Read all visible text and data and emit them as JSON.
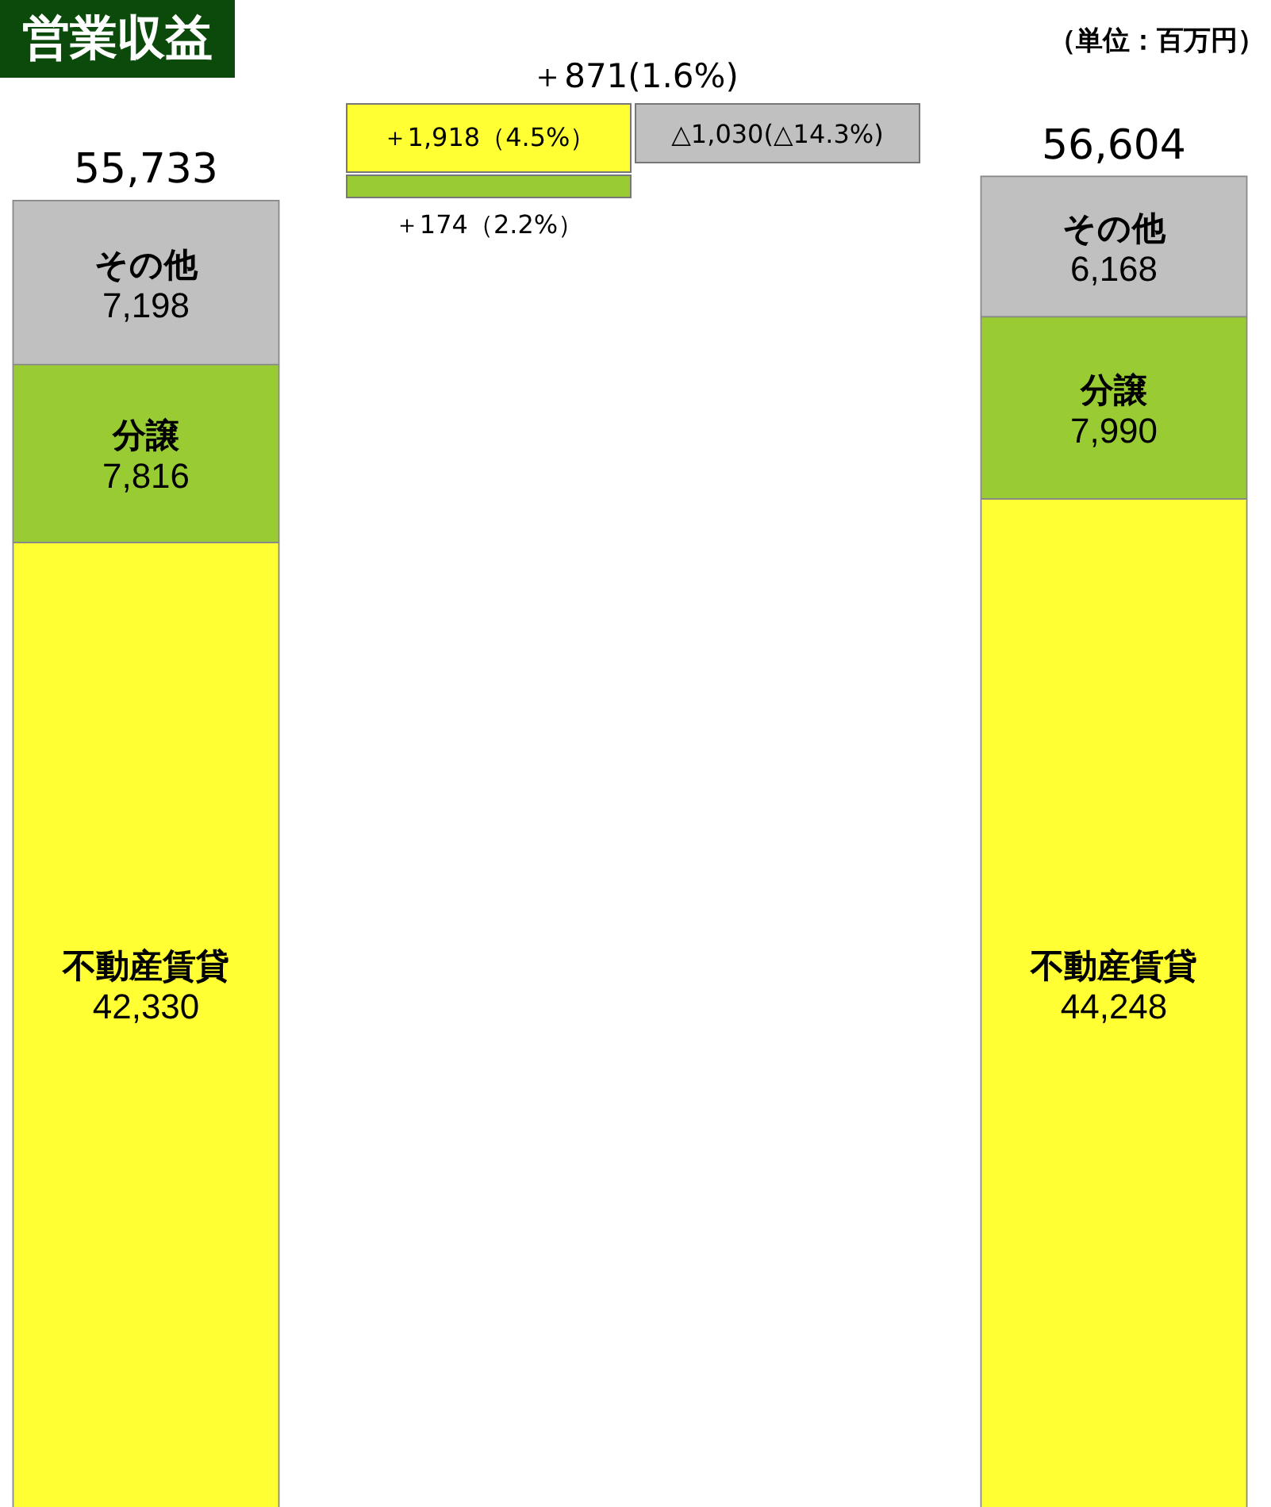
{
  "chart_data": {
    "type": "bar",
    "title": "営業収益",
    "subtitle": "（単位：百万円）",
    "categories": [
      null,
      null
    ],
    "stacked": true,
    "tick_labels": false,
    "series": [
      {
        "name": "不動産賃貸",
        "color": "#ffff33",
        "values": [
          42330,
          44248
        ],
        "value_labels": [
          "42,330",
          "44,248"
        ]
      },
      {
        "name": "分譲",
        "color": "#99cc33",
        "values": [
          7816,
          7990
        ],
        "value_labels": [
          "7,816",
          "7,990"
        ]
      },
      {
        "name": "その他",
        "color": "#c0c0c0",
        "values": [
          7198,
          6168
        ],
        "value_labels": [
          "7,198",
          "6,168"
        ]
      }
    ],
    "annotations": [
      "＋871(1.6%)",
      "55,733",
      "＋1,918（4.5%）",
      "△1,030(△14.3%)",
      "56,604",
      "＋174（2.2%）"
    ]
  }
}
